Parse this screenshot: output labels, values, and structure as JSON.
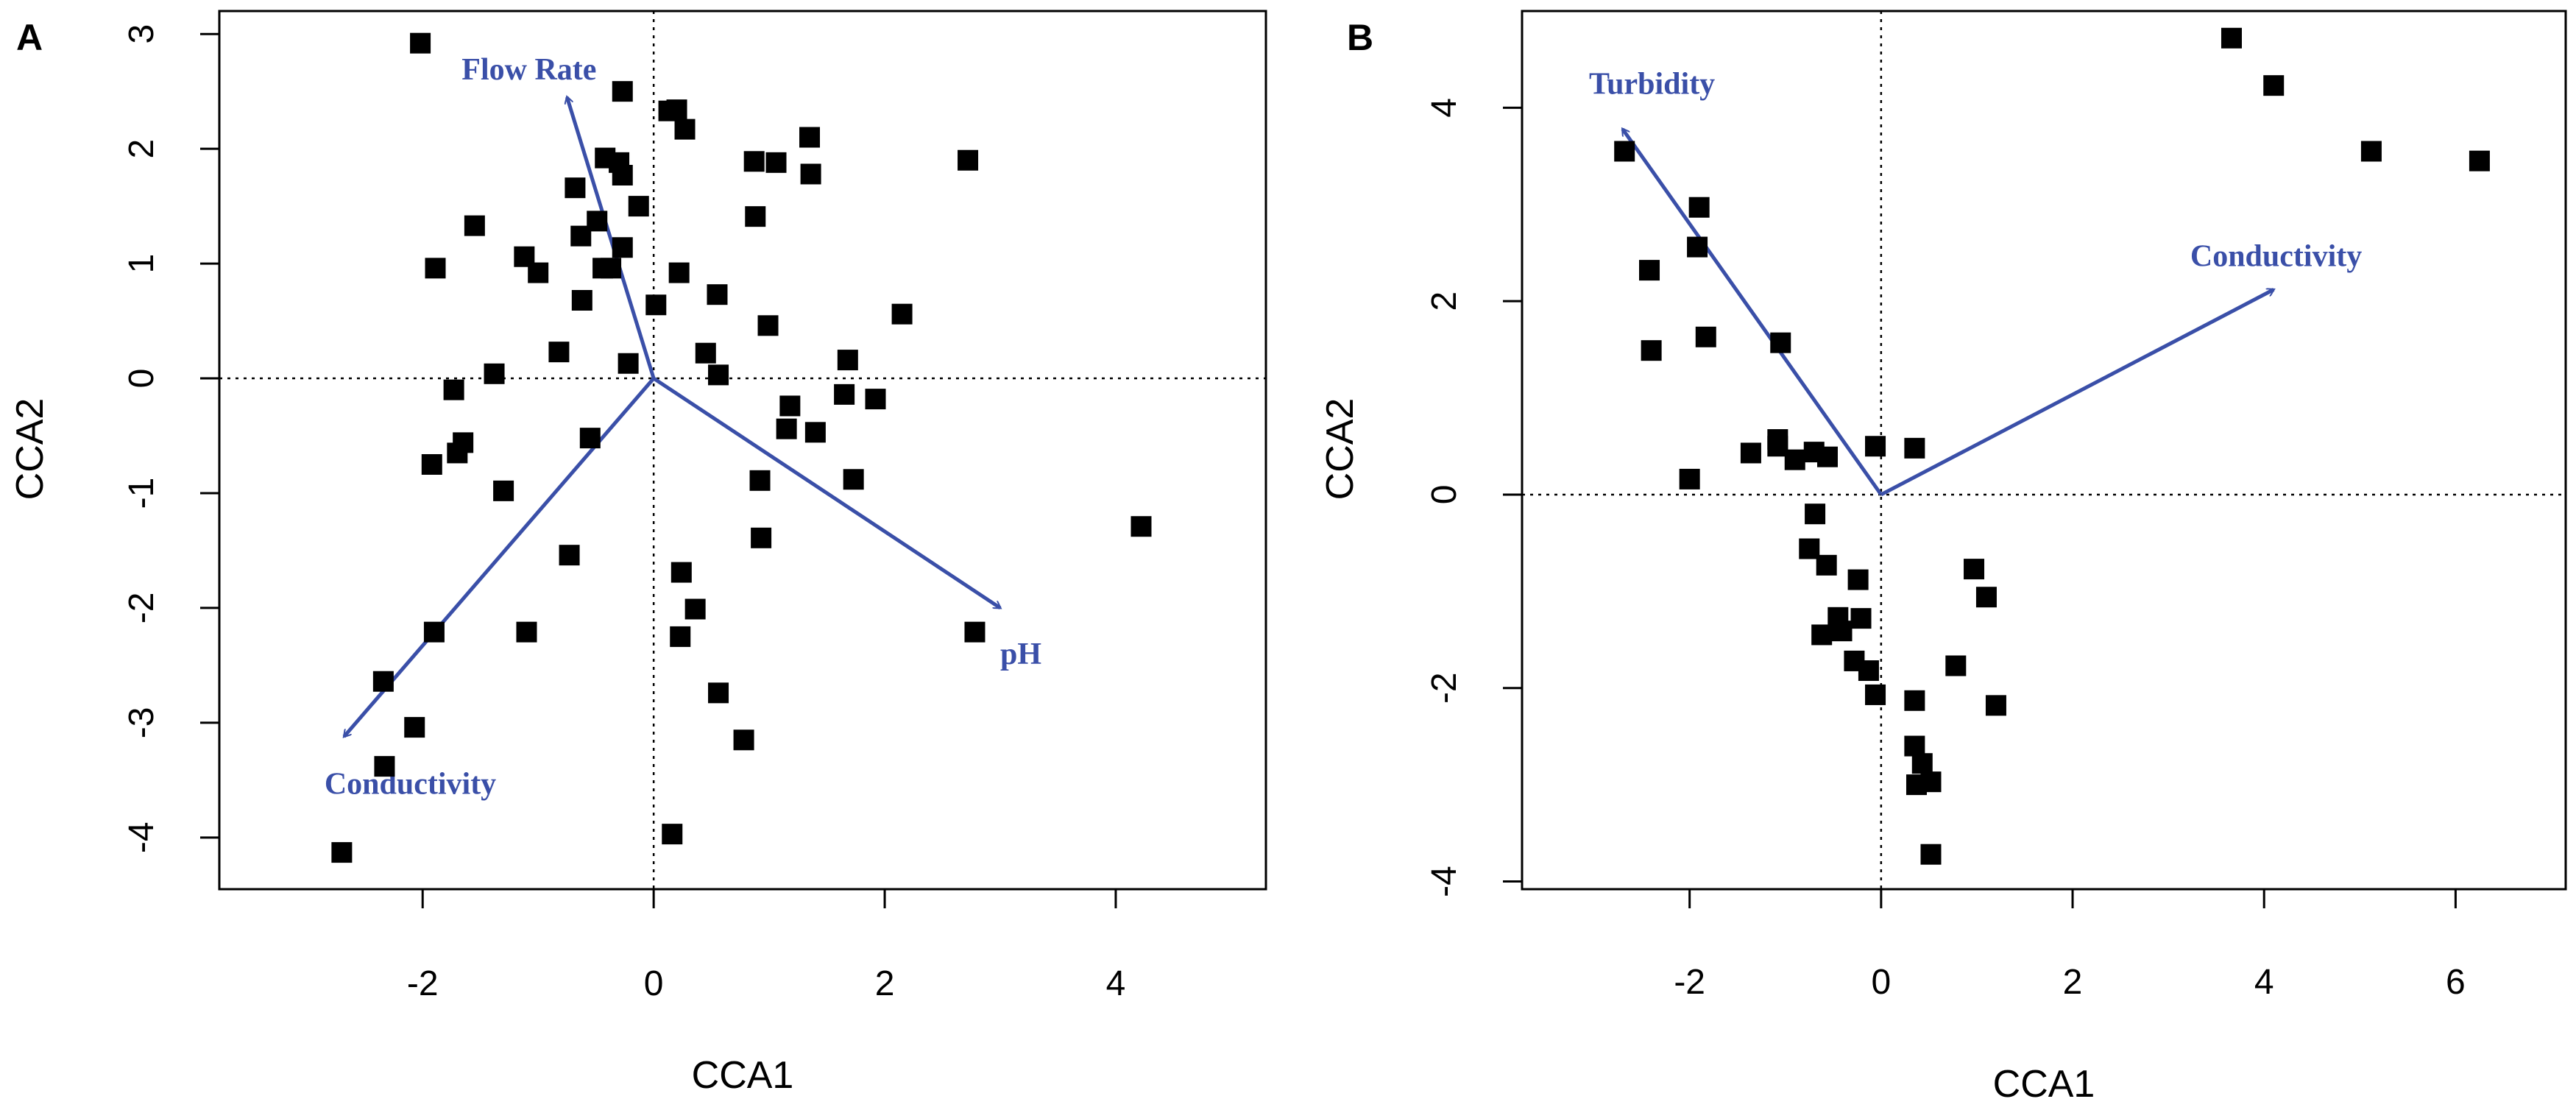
{
  "colors": {
    "arrow": "#3a4fa8",
    "point": "#000000",
    "frame": "#000000"
  },
  "chart_data": [
    {
      "panel": "A",
      "type": "scatter",
      "xlabel": "CCA1",
      "ylabel": "CCA2",
      "xlim": [
        -3.76,
        5.3
      ],
      "ylim": [
        -4.45,
        3.2
      ],
      "xticks": [
        -2,
        0,
        2,
        4
      ],
      "yticks": [
        -4,
        -3,
        -2,
        -1,
        0,
        1,
        2,
        3
      ],
      "xtick_labels": [
        "-2",
        "0",
        "2",
        "4"
      ],
      "ytick_labels": [
        "-4",
        "-3",
        "-2",
        "-1",
        "0",
        "1",
        "2",
        "3"
      ],
      "reference_lines": {
        "x": 0,
        "y": 0
      },
      "points": [
        [
          -2.02,
          2.92
        ],
        [
          -0.27,
          2.5
        ],
        [
          0.13,
          2.33
        ],
        [
          0.2,
          2.34
        ],
        [
          0.27,
          2.17
        ],
        [
          1.35,
          2.1
        ],
        [
          2.72,
          1.9
        ],
        [
          -0.42,
          1.92
        ],
        [
          -0.3,
          1.88
        ],
        [
          0.87,
          1.89
        ],
        [
          1.06,
          1.88
        ],
        [
          1.36,
          1.78
        ],
        [
          -0.27,
          1.77
        ],
        [
          -0.68,
          1.66
        ],
        [
          -0.13,
          1.5
        ],
        [
          0.88,
          1.41
        ],
        [
          -0.49,
          1.37
        ],
        [
          -1.55,
          1.33
        ],
        [
          -0.63,
          1.24
        ],
        [
          -0.27,
          1.14
        ],
        [
          -1.12,
          1.06
        ],
        [
          -1.89,
          0.96
        ],
        [
          -0.44,
          0.96
        ],
        [
          -0.37,
          0.96
        ],
        [
          -1.0,
          0.92
        ],
        [
          0.22,
          0.92
        ],
        [
          0.55,
          0.73
        ],
        [
          -0.62,
          0.68
        ],
        [
          0.02,
          0.64
        ],
        [
          2.15,
          0.56
        ],
        [
          0.99,
          0.46
        ],
        [
          -0.82,
          0.23
        ],
        [
          0.45,
          0.22
        ],
        [
          1.68,
          0.16
        ],
        [
          -0.22,
          0.13
        ],
        [
          -1.38,
          0.04
        ],
        [
          0.56,
          0.03
        ],
        [
          -1.73,
          -0.1
        ],
        [
          1.65,
          -0.14
        ],
        [
          1.92,
          -0.18
        ],
        [
          1.18,
          -0.24
        ],
        [
          -0.55,
          -0.52
        ],
        [
          1.15,
          -0.44
        ],
        [
          1.4,
          -0.47
        ],
        [
          -1.65,
          -0.56
        ],
        [
          -1.7,
          -0.65
        ],
        [
          -1.92,
          -0.75
        ],
        [
          1.73,
          -0.88
        ],
        [
          0.92,
          -0.89
        ],
        [
          -1.3,
          -0.98
        ],
        [
          4.22,
          -1.29
        ],
        [
          0.93,
          -1.39
        ],
        [
          -0.73,
          -1.54
        ],
        [
          0.24,
          -1.69
        ],
        [
          0.36,
          -2.01
        ],
        [
          -1.9,
          -2.21
        ],
        [
          -1.1,
          -2.21
        ],
        [
          0.23,
          -2.25
        ],
        [
          2.78,
          -2.21
        ],
        [
          -2.34,
          -2.64
        ],
        [
          0.56,
          -2.74
        ],
        [
          -2.07,
          -3.04
        ],
        [
          0.78,
          -3.15
        ],
        [
          -2.33,
          -3.38
        ],
        [
          -2.7,
          -4.13
        ],
        [
          0.16,
          -3.97
        ]
      ],
      "arrows": [
        {
          "label": "Flow Rate",
          "x": -0.75,
          "y": 2.45
        },
        {
          "label": "pH",
          "x": 3.0,
          "y": -2.0
        },
        {
          "label": "Conductivity",
          "x": -2.68,
          "y": -3.12
        }
      ]
    },
    {
      "panel": "B",
      "type": "scatter",
      "xlabel": "CCA1",
      "ylabel": "CCA2",
      "xlim": [
        -3.75,
        7.15
      ],
      "ylim": [
        -4.08,
        5.0
      ],
      "xticks": [
        -2,
        0,
        2,
        4,
        6
      ],
      "yticks": [
        -4,
        -2,
        0,
        2,
        4
      ],
      "xtick_labels": [
        "-2",
        "0",
        "2",
        "4",
        "6"
      ],
      "ytick_labels": [
        "-4",
        "-2",
        "0",
        "2",
        "4"
      ],
      "reference_lines": {
        "x": 0,
        "y": 0
      },
      "points": [
        [
          3.66,
          4.72
        ],
        [
          4.1,
          4.23
        ],
        [
          5.12,
          3.55
        ],
        [
          6.25,
          3.45
        ],
        [
          -2.68,
          3.55
        ],
        [
          -1.9,
          2.97
        ],
        [
          -1.92,
          2.56
        ],
        [
          -2.42,
          2.32
        ],
        [
          -1.83,
          1.63
        ],
        [
          -2.4,
          1.49
        ],
        [
          -1.05,
          1.57
        ],
        [
          -0.06,
          0.5
        ],
        [
          0.35,
          0.48
        ],
        [
          -1.08,
          0.57
        ],
        [
          -1.08,
          0.5
        ],
        [
          -1.36,
          0.43
        ],
        [
          -0.7,
          0.44
        ],
        [
          -0.56,
          0.39
        ],
        [
          -0.9,
          0.36
        ],
        [
          -2.0,
          0.16
        ],
        [
          -0.69,
          -0.2
        ],
        [
          -0.75,
          -0.56
        ],
        [
          -0.57,
          -0.73
        ],
        [
          -0.24,
          -0.88
        ],
        [
          0.97,
          -0.77
        ],
        [
          1.1,
          -1.06
        ],
        [
          -0.45,
          -1.27
        ],
        [
          -0.21,
          -1.28
        ],
        [
          -0.41,
          -1.41
        ],
        [
          -0.62,
          -1.45
        ],
        [
          -0.28,
          -1.72
        ],
        [
          0.78,
          -1.77
        ],
        [
          -0.13,
          -1.82
        ],
        [
          -0.06,
          -2.07
        ],
        [
          0.35,
          -2.13
        ],
        [
          1.2,
          -2.18
        ],
        [
          0.35,
          -2.6
        ],
        [
          0.43,
          -2.78
        ],
        [
          0.37,
          -3.0
        ],
        [
          0.52,
          -2.97
        ],
        [
          0.52,
          -3.72
        ]
      ],
      "arrows": [
        {
          "label": "Turbidity",
          "x": -2.7,
          "y": 3.78
        },
        {
          "label": "Conductivity",
          "x": 4.1,
          "y": 2.12
        }
      ]
    }
  ]
}
